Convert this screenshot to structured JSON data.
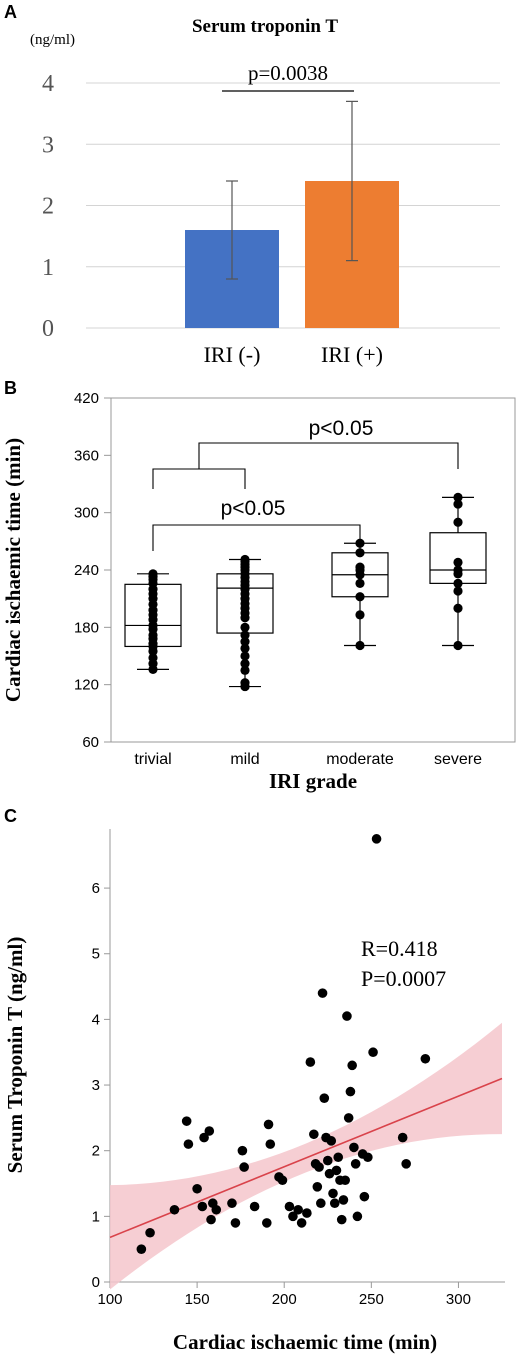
{
  "chart_data": [
    {
      "panel": "A",
      "type": "bar",
      "title": "Serum troponin T",
      "unit_label": "(ng/ml)",
      "categories": [
        "IRI (-)",
        "IRI (+)"
      ],
      "values": [
        1.6,
        2.4
      ],
      "error_low": [
        0.8,
        1.1
      ],
      "error_high": [
        2.4,
        3.7
      ],
      "colors": [
        "#4472c4",
        "#ed7d31"
      ],
      "yticks": [
        0,
        1,
        2,
        3,
        4
      ],
      "ylim": [
        0,
        4
      ],
      "grid": true,
      "annotation": "p=0.0038"
    },
    {
      "panel": "B",
      "type": "box",
      "xlabel": "IRI grade",
      "ylabel": "Cardiac ischaemic time (min)",
      "categories": [
        "trivial",
        "mild",
        "moderate",
        "severe"
      ],
      "yticks": [
        60,
        120,
        180,
        240,
        300,
        360,
        420
      ],
      "ylim": [
        60,
        420
      ],
      "boxes": [
        {
          "min": 136,
          "q1": 160,
          "median": 182,
          "q3": 225,
          "max": 236,
          "points": [
            136,
            142,
            148,
            155,
            160,
            163,
            168,
            172,
            178,
            182,
            188,
            193,
            198,
            204,
            210,
            215,
            220,
            226,
            230,
            233,
            236
          ]
        },
        {
          "min": 118,
          "q1": 174,
          "median": 221,
          "q3": 236,
          "max": 251,
          "points": [
            118,
            122,
            135,
            142,
            150,
            158,
            165,
            172,
            180,
            190,
            195,
            200,
            205,
            210,
            215,
            220,
            224,
            228,
            232,
            236,
            240,
            243,
            246,
            249,
            251
          ]
        },
        {
          "min": 161,
          "q1": 212,
          "median": 235,
          "q3": 258,
          "max": 268,
          "points": [
            161,
            193,
            212,
            226,
            235,
            240,
            243,
            258,
            268
          ]
        },
        {
          "min": 161,
          "q1": 226,
          "median": 240,
          "q3": 279,
          "max": 316,
          "points": [
            161,
            200,
            218,
            226,
            236,
            240,
            248,
            290,
            309,
            316
          ]
        }
      ],
      "annotations": [
        "p<0.05",
        "p<0.05"
      ]
    },
    {
      "panel": "C",
      "type": "scatter",
      "xlabel": "Cardiac ischaemic time (min)",
      "ylabel": "Serum Troponin T (ng/ml)",
      "xticks": [
        100,
        150,
        200,
        250,
        300
      ],
      "yticks": [
        0,
        1,
        2,
        3,
        4,
        5,
        6
      ],
      "xlim": [
        100,
        325
      ],
      "ylim": [
        0,
        6.9
      ],
      "stats_r": "R=0.418",
      "stats_p": "P=0.0007",
      "fit": {
        "x": [
          100,
          325
        ],
        "y": [
          0.68,
          3.1
        ]
      },
      "points": [
        [
          118,
          0.5
        ],
        [
          123,
          0.75
        ],
        [
          137,
          1.1
        ],
        [
          144,
          2.45
        ],
        [
          145,
          2.1
        ],
        [
          150,
          1.42
        ],
        [
          153,
          1.15
        ],
        [
          154,
          2.2
        ],
        [
          157,
          2.3
        ],
        [
          158,
          0.95
        ],
        [
          159,
          1.2
        ],
        [
          161,
          1.1
        ],
        [
          170,
          1.2
        ],
        [
          172,
          0.9
        ],
        [
          176,
          2.0
        ],
        [
          177,
          1.75
        ],
        [
          183,
          1.15
        ],
        [
          190,
          0.9
        ],
        [
          191,
          2.4
        ],
        [
          192,
          2.1
        ],
        [
          197,
          1.6
        ],
        [
          199,
          1.55
        ],
        [
          203,
          1.15
        ],
        [
          205,
          1.0
        ],
        [
          208,
          1.1
        ],
        [
          210,
          0.9
        ],
        [
          213,
          1.05
        ],
        [
          215,
          3.35
        ],
        [
          217,
          2.25
        ],
        [
          218,
          1.8
        ],
        [
          219,
          1.45
        ],
        [
          220,
          1.75
        ],
        [
          221,
          1.2
        ],
        [
          222,
          4.4
        ],
        [
          223,
          2.8
        ],
        [
          224,
          2.2
        ],
        [
          225,
          1.85
        ],
        [
          226,
          1.65
        ],
        [
          227,
          2.15
        ],
        [
          228,
          1.35
        ],
        [
          229,
          1.2
        ],
        [
          230,
          1.7
        ],
        [
          231,
          1.9
        ],
        [
          232,
          1.55
        ],
        [
          233,
          0.95
        ],
        [
          234,
          1.25
        ],
        [
          235,
          1.55
        ],
        [
          236,
          4.05
        ],
        [
          237,
          2.5
        ],
        [
          238,
          2.9
        ],
        [
          239,
          3.3
        ],
        [
          240,
          2.05
        ],
        [
          241,
          1.8
        ],
        [
          242,
          1.0
        ],
        [
          245,
          1.95
        ],
        [
          246,
          1.3
        ],
        [
          248,
          1.9
        ],
        [
          251,
          3.5
        ],
        [
          253,
          6.75
        ],
        [
          268,
          2.2
        ],
        [
          270,
          1.8
        ],
        [
          281,
          3.4
        ]
      ]
    }
  ]
}
